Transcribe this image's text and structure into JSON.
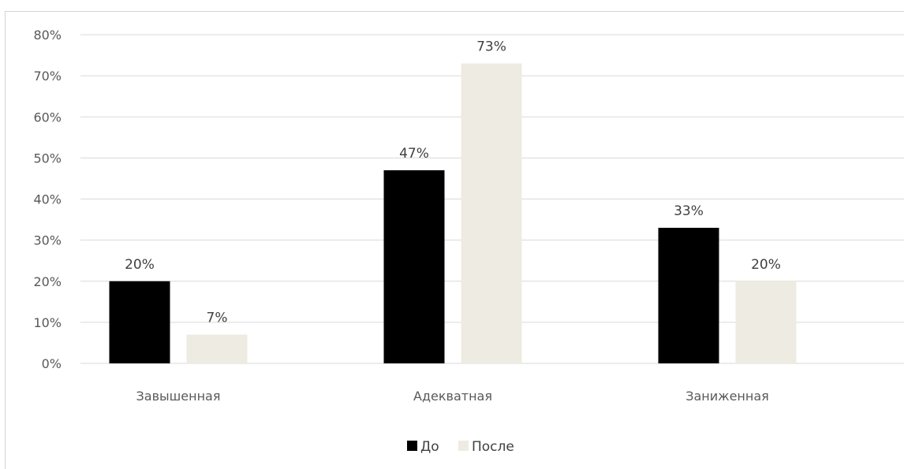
{
  "chart_data": {
    "type": "bar",
    "categories": [
      "Завышенная",
      "Адекватная",
      "Заниженная"
    ],
    "series": [
      {
        "name": "До",
        "values": [
          20,
          47,
          33
        ],
        "color": "#000000",
        "labels": [
          "20%",
          "47%",
          "33%"
        ]
      },
      {
        "name": "После",
        "values": [
          7,
          73,
          20
        ],
        "color": "#eeebe2",
        "labels": [
          "7%",
          "73%",
          "20%"
        ]
      }
    ],
    "ylim": [
      0,
      80
    ],
    "yticks": [
      0,
      10,
      20,
      30,
      40,
      50,
      60,
      70,
      80
    ],
    "ytick_labels": [
      "0%",
      "10%",
      "20%",
      "30%",
      "40%",
      "50%",
      "60%",
      "70%",
      "80%"
    ],
    "grid": true,
    "legend_position": "bottom",
    "gridline_color": "#d9d9d9"
  }
}
